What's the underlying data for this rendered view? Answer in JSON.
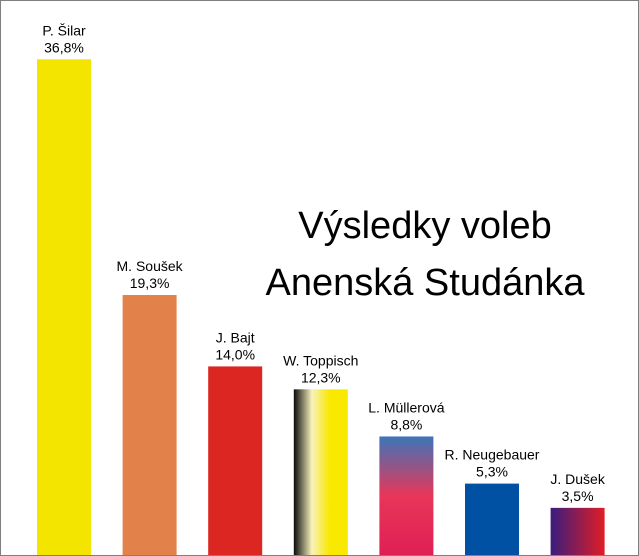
{
  "chart_data": {
    "type": "bar",
    "title_lines": [
      "Výsledky voleb",
      "Anenská Studánka"
    ],
    "categories": [
      "P. Šilar",
      "M. Soušek",
      "J. Bajt",
      "W. Toppisch",
      "L. Müllerová",
      "R. Neugebauer",
      "J. Dušek"
    ],
    "values": [
      36.8,
      19.3,
      14.0,
      12.3,
      8.8,
      5.3,
      3.5
    ],
    "value_labels": [
      "36,8%",
      "19,3%",
      "14,0%",
      "12,3%",
      "8,8%",
      "5,3%",
      "3,5%"
    ],
    "bar_fills": [
      {
        "kind": "solid",
        "colors": [
          "#f3e500"
        ]
      },
      {
        "kind": "solid",
        "colors": [
          "#e3814a"
        ]
      },
      {
        "kind": "solid",
        "colors": [
          "#db2622"
        ]
      },
      {
        "kind": "horizontal-gradient",
        "colors": [
          "#0a0a0a",
          "#f7f2bc",
          "#f9e800",
          "#f9e800"
        ]
      },
      {
        "kind": "vertical-gradient",
        "colors": [
          "#3d75b8",
          "#e83658",
          "#df1f55"
        ]
      },
      {
        "kind": "solid",
        "colors": [
          "#0050a3"
        ]
      },
      {
        "kind": "horizontal-gradient",
        "colors": [
          "#3a1d7e",
          "#e11d25"
        ]
      }
    ],
    "axes_visible": false,
    "grid": false,
    "legend": false
  }
}
